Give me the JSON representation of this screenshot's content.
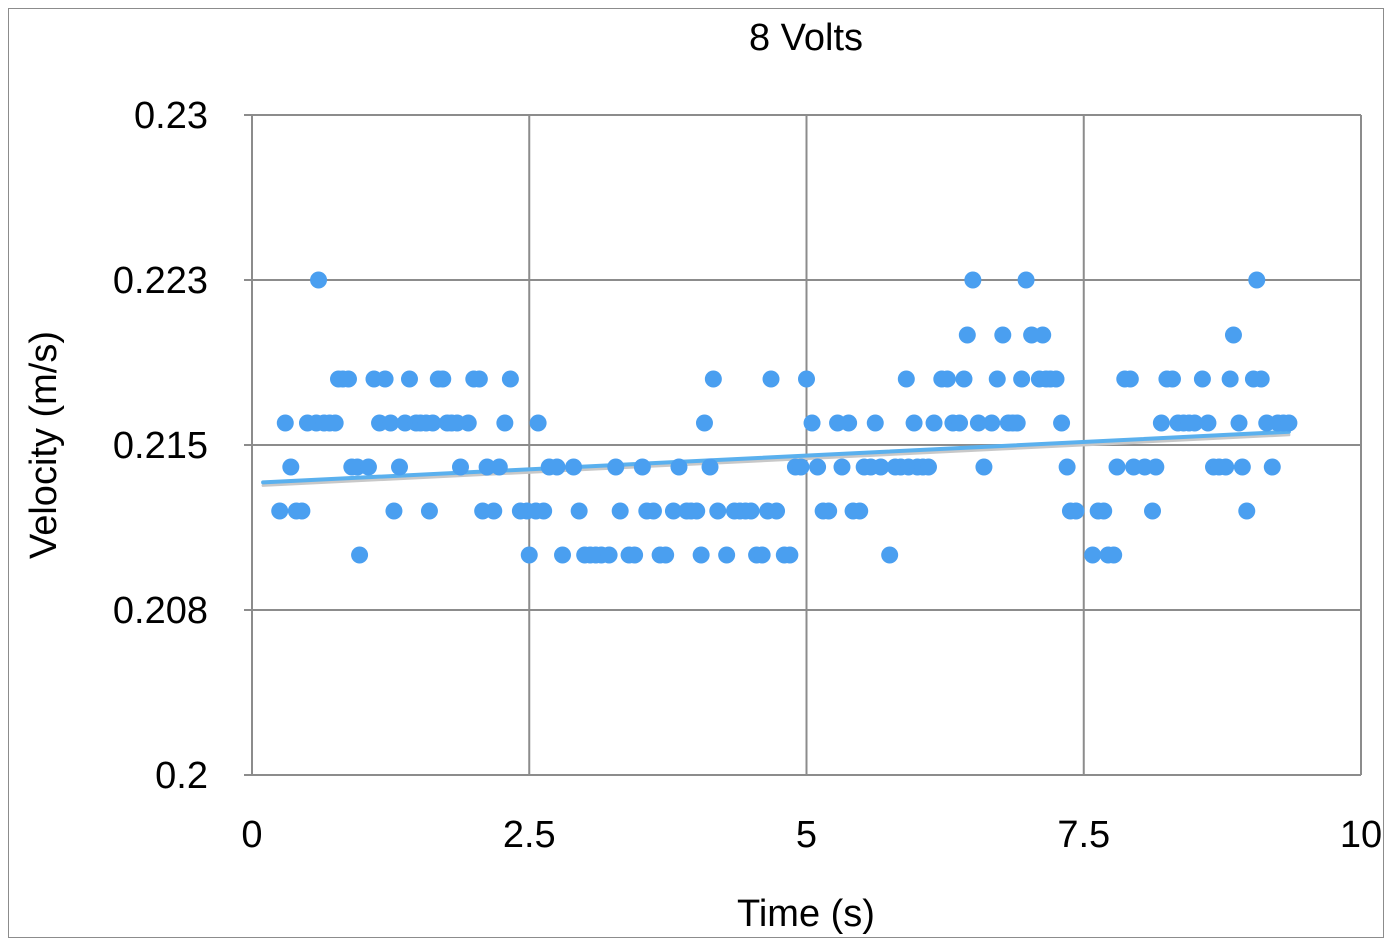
{
  "chart_data": {
    "type": "scatter",
    "title": "8 Volts",
    "xlabel": "Time (s)",
    "ylabel": "Velocity (m/s)",
    "xlim": [
      0,
      10
    ],
    "ylim": [
      0.2,
      0.23
    ],
    "x_ticks": [
      "0",
      "2.5",
      "5",
      "7.5",
      "10"
    ],
    "y_ticks": [
      "0.2",
      "0.208",
      "0.215",
      "0.223",
      "0.23"
    ],
    "grid": true,
    "colors": {
      "marker": "#4a9ff0",
      "trendline": "#5ab0ee",
      "grid": "#8c8c8c"
    },
    "trendline": {
      "type": "linear",
      "x": [
        0.1,
        9.35
      ],
      "y": [
        0.2133,
        0.2156
      ]
    },
    "points": [
      [
        0.25,
        0.212
      ],
      [
        0.3,
        0.216
      ],
      [
        0.35,
        0.214
      ],
      [
        0.4,
        0.212
      ],
      [
        0.45,
        0.212
      ],
      [
        0.5,
        0.216
      ],
      [
        0.58,
        0.216
      ],
      [
        0.6,
        0.2225
      ],
      [
        0.65,
        0.216
      ],
      [
        0.7,
        0.216
      ],
      [
        0.75,
        0.216
      ],
      [
        0.78,
        0.218
      ],
      [
        0.82,
        0.218
      ],
      [
        0.87,
        0.218
      ],
      [
        0.9,
        0.214
      ],
      [
        0.95,
        0.214
      ],
      [
        0.97,
        0.21
      ],
      [
        1.05,
        0.214
      ],
      [
        1.1,
        0.218
      ],
      [
        1.15,
        0.216
      ],
      [
        1.2,
        0.218
      ],
      [
        1.25,
        0.216
      ],
      [
        1.28,
        0.212
      ],
      [
        1.33,
        0.214
      ],
      [
        1.38,
        0.216
      ],
      [
        1.42,
        0.218
      ],
      [
        1.48,
        0.216
      ],
      [
        1.52,
        0.216
      ],
      [
        1.57,
        0.216
      ],
      [
        1.6,
        0.212
      ],
      [
        1.63,
        0.216
      ],
      [
        1.68,
        0.218
      ],
      [
        1.72,
        0.218
      ],
      [
        1.76,
        0.216
      ],
      [
        1.8,
        0.216
      ],
      [
        1.85,
        0.216
      ],
      [
        1.88,
        0.214
      ],
      [
        1.95,
        0.216
      ],
      [
        2.0,
        0.218
      ],
      [
        2.05,
        0.218
      ],
      [
        2.08,
        0.212
      ],
      [
        2.12,
        0.214
      ],
      [
        2.18,
        0.212
      ],
      [
        2.23,
        0.214
      ],
      [
        2.28,
        0.216
      ],
      [
        2.33,
        0.218
      ],
      [
        2.42,
        0.212
      ],
      [
        2.48,
        0.212
      ],
      [
        2.5,
        0.21
      ],
      [
        2.56,
        0.212
      ],
      [
        2.58,
        0.216
      ],
      [
        2.63,
        0.212
      ],
      [
        2.68,
        0.214
      ],
      [
        2.75,
        0.214
      ],
      [
        2.8,
        0.21
      ],
      [
        2.9,
        0.214
      ],
      [
        2.95,
        0.212
      ],
      [
        3.0,
        0.21
      ],
      [
        3.05,
        0.21
      ],
      [
        3.1,
        0.21
      ],
      [
        3.15,
        0.21
      ],
      [
        3.22,
        0.21
      ],
      [
        3.28,
        0.214
      ],
      [
        3.32,
        0.212
      ],
      [
        3.4,
        0.21
      ],
      [
        3.45,
        0.21
      ],
      [
        3.52,
        0.214
      ],
      [
        3.56,
        0.212
      ],
      [
        3.62,
        0.212
      ],
      [
        3.68,
        0.21
      ],
      [
        3.73,
        0.21
      ],
      [
        3.8,
        0.212
      ],
      [
        3.85,
        0.214
      ],
      [
        3.92,
        0.212
      ],
      [
        3.96,
        0.212
      ],
      [
        4.01,
        0.212
      ],
      [
        4.05,
        0.21
      ],
      [
        4.08,
        0.216
      ],
      [
        4.13,
        0.214
      ],
      [
        4.16,
        0.218
      ],
      [
        4.2,
        0.212
      ],
      [
        4.28,
        0.21
      ],
      [
        4.35,
        0.212
      ],
      [
        4.4,
        0.212
      ],
      [
        4.45,
        0.212
      ],
      [
        4.5,
        0.212
      ],
      [
        4.55,
        0.21
      ],
      [
        4.6,
        0.21
      ],
      [
        4.65,
        0.212
      ],
      [
        4.68,
        0.218
      ],
      [
        4.73,
        0.212
      ],
      [
        4.8,
        0.21
      ],
      [
        4.85,
        0.21
      ],
      [
        4.9,
        0.214
      ],
      [
        4.95,
        0.214
      ],
      [
        5.0,
        0.218
      ],
      [
        5.05,
        0.216
      ],
      [
        5.1,
        0.214
      ],
      [
        5.15,
        0.212
      ],
      [
        5.2,
        0.212
      ],
      [
        5.28,
        0.216
      ],
      [
        5.32,
        0.214
      ],
      [
        5.38,
        0.216
      ],
      [
        5.42,
        0.212
      ],
      [
        5.48,
        0.212
      ],
      [
        5.52,
        0.214
      ],
      [
        5.58,
        0.214
      ],
      [
        5.62,
        0.216
      ],
      [
        5.67,
        0.214
      ],
      [
        5.75,
        0.21
      ],
      [
        5.8,
        0.214
      ],
      [
        5.85,
        0.214
      ],
      [
        5.9,
        0.218
      ],
      [
        5.92,
        0.214
      ],
      [
        5.97,
        0.216
      ],
      [
        6.0,
        0.214
      ],
      [
        6.05,
        0.214
      ],
      [
        6.1,
        0.214
      ],
      [
        6.15,
        0.216
      ],
      [
        6.22,
        0.218
      ],
      [
        6.27,
        0.218
      ],
      [
        6.32,
        0.216
      ],
      [
        6.38,
        0.216
      ],
      [
        6.42,
        0.218
      ],
      [
        6.45,
        0.22
      ],
      [
        6.5,
        0.2225
      ],
      [
        6.55,
        0.216
      ],
      [
        6.6,
        0.214
      ],
      [
        6.67,
        0.216
      ],
      [
        6.72,
        0.218
      ],
      [
        6.77,
        0.22
      ],
      [
        6.82,
        0.216
      ],
      [
        6.86,
        0.216
      ],
      [
        6.9,
        0.216
      ],
      [
        6.94,
        0.218
      ],
      [
        6.98,
        0.2225
      ],
      [
        7.03,
        0.22
      ],
      [
        7.1,
        0.218
      ],
      [
        7.13,
        0.22
      ],
      [
        7.16,
        0.218
      ],
      [
        7.2,
        0.218
      ],
      [
        7.25,
        0.218
      ],
      [
        7.3,
        0.216
      ],
      [
        7.35,
        0.214
      ],
      [
        7.38,
        0.212
      ],
      [
        7.43,
        0.212
      ],
      [
        7.58,
        0.21
      ],
      [
        7.63,
        0.212
      ],
      [
        7.68,
        0.212
      ],
      [
        7.72,
        0.21
      ],
      [
        7.77,
        0.21
      ],
      [
        7.8,
        0.214
      ],
      [
        7.87,
        0.218
      ],
      [
        7.92,
        0.218
      ],
      [
        7.95,
        0.214
      ],
      [
        8.05,
        0.214
      ],
      [
        8.12,
        0.212
      ],
      [
        8.15,
        0.214
      ],
      [
        8.2,
        0.216
      ],
      [
        8.25,
        0.218
      ],
      [
        8.3,
        0.218
      ],
      [
        8.35,
        0.216
      ],
      [
        8.4,
        0.216
      ],
      [
        8.45,
        0.216
      ],
      [
        8.5,
        0.216
      ],
      [
        8.57,
        0.218
      ],
      [
        8.62,
        0.216
      ],
      [
        8.67,
        0.214
      ],
      [
        8.72,
        0.214
      ],
      [
        8.78,
        0.214
      ],
      [
        8.82,
        0.218
      ],
      [
        8.85,
        0.22
      ],
      [
        8.9,
        0.216
      ],
      [
        8.93,
        0.214
      ],
      [
        8.97,
        0.212
      ],
      [
        9.03,
        0.218
      ],
      [
        9.06,
        0.2225
      ],
      [
        9.1,
        0.218
      ],
      [
        9.15,
        0.216
      ],
      [
        9.2,
        0.214
      ],
      [
        9.25,
        0.216
      ],
      [
        9.3,
        0.216
      ],
      [
        9.35,
        0.216
      ]
    ]
  }
}
